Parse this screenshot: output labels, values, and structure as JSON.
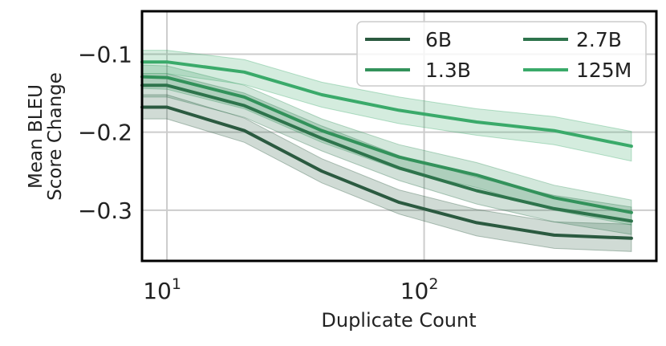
{
  "chart_data": {
    "type": "line",
    "xlabel": "Duplicate Count",
    "ylabel_lines": [
      "Mean BLEU",
      "Score Change"
    ],
    "xscale": "log",
    "xlim": [
      8,
      800
    ],
    "ylim": [
      -0.365,
      -0.045
    ],
    "x_ticks": [
      {
        "value": 10,
        "base": "10",
        "exp": "1"
      },
      {
        "value": 100,
        "base": "10",
        "exp": "2"
      }
    ],
    "y_ticks": [
      {
        "value": -0.1,
        "label": "−0.1"
      },
      {
        "value": -0.2,
        "label": "−0.2"
      },
      {
        "value": -0.3,
        "label": "−0.3"
      }
    ],
    "grid": true,
    "legend": {
      "placement": "top-right",
      "columns": 2
    },
    "x": [
      8,
      10,
      20,
      40,
      80,
      160,
      320,
      640
    ],
    "series": [
      {
        "name": "6B",
        "color": "#2b5a40",
        "values": [
          -0.168,
          -0.168,
          -0.198,
          -0.25,
          -0.29,
          -0.316,
          -0.332,
          -0.336
        ],
        "lower": [
          -0.183,
          -0.183,
          -0.213,
          -0.265,
          -0.305,
          -0.333,
          -0.349,
          -0.353
        ],
        "upper": [
          -0.152,
          -0.152,
          -0.182,
          -0.234,
          -0.274,
          -0.299,
          -0.315,
          -0.318
        ]
      },
      {
        "name": "2.7B",
        "color": "#2e744c",
        "values": [
          -0.14,
          -0.14,
          -0.166,
          -0.208,
          -0.246,
          -0.275,
          -0.298,
          -0.314
        ],
        "lower": [
          -0.155,
          -0.155,
          -0.181,
          -0.224,
          -0.262,
          -0.292,
          -0.315,
          -0.331
        ],
        "upper": [
          -0.125,
          -0.125,
          -0.15,
          -0.192,
          -0.23,
          -0.258,
          -0.281,
          -0.296
        ]
      },
      {
        "name": "1.3B",
        "color": "#33925b",
        "values": [
          -0.129,
          -0.13,
          -0.155,
          -0.198,
          -0.232,
          -0.255,
          -0.284,
          -0.303
        ],
        "lower": [
          -0.144,
          -0.145,
          -0.17,
          -0.213,
          -0.248,
          -0.271,
          -0.3,
          -0.319
        ],
        "upper": [
          -0.114,
          -0.115,
          -0.14,
          -0.183,
          -0.216,
          -0.239,
          -0.268,
          -0.287
        ]
      },
      {
        "name": "125M",
        "color": "#3aaa6a",
        "values": [
          -0.11,
          -0.11,
          -0.123,
          -0.152,
          -0.172,
          -0.187,
          -0.198,
          -0.218
        ],
        "lower": [
          -0.125,
          -0.125,
          -0.139,
          -0.168,
          -0.189,
          -0.204,
          -0.216,
          -0.237
        ],
        "upper": [
          -0.095,
          -0.095,
          -0.107,
          -0.136,
          -0.155,
          -0.17,
          -0.18,
          -0.199
        ]
      }
    ]
  }
}
